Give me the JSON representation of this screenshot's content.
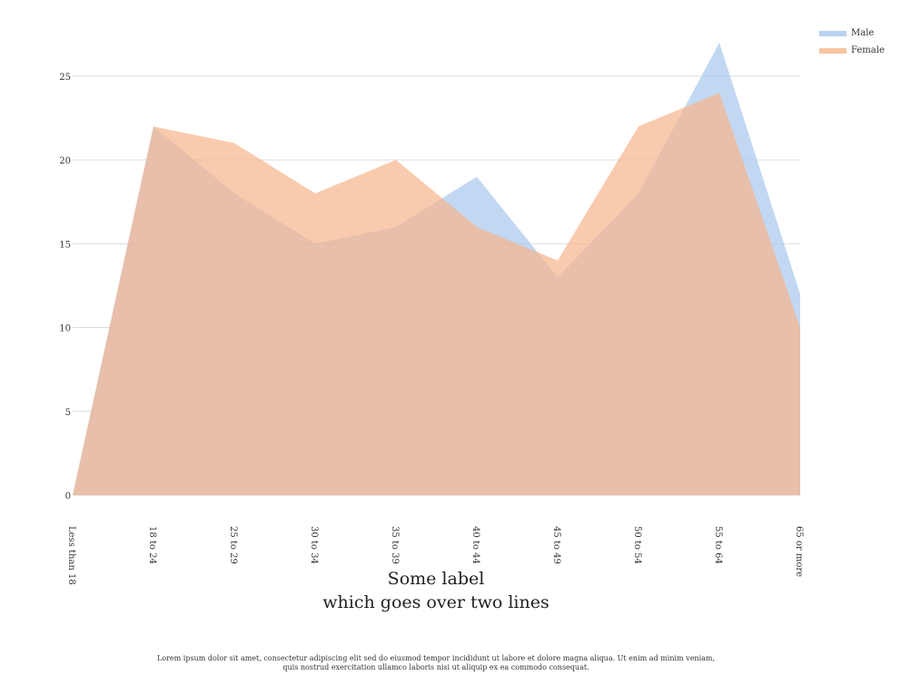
{
  "chart_data": {
    "type": "area",
    "categories": [
      "Less than 18",
      "18 to 24",
      "25 to 29",
      "30 to 34",
      "35 to 39",
      "40 to 44",
      "45 to 49",
      "50 to 54",
      "55 to 64",
      "65 or more"
    ],
    "series": [
      {
        "name": "Male",
        "values": [
          0,
          22,
          18,
          15,
          16,
          19,
          13,
          18,
          27,
          12
        ],
        "color": "#a8c8ec"
      },
      {
        "name": "Female",
        "values": [
          0,
          22,
          21,
          18,
          20,
          16,
          14,
          22,
          24,
          10
        ],
        "color": "#f6b58c"
      }
    ],
    "yticks": [
      0,
      5,
      10,
      15,
      20,
      25
    ],
    "ylim": [
      0,
      27
    ],
    "grid": true,
    "legend_position": "top-right",
    "xlabel_lines": [
      "Some label",
      "which goes over two lines"
    ],
    "caption_lines": [
      "Lorem ipsum dolor sit amet, consectetur adipiscing elit sed do eiusmod tempor incididunt ut labore et dolore magna aliqua. Ut enim ad minim veniam,",
      "quis nostrud exercitation ullamco laboris nisi ut aliquip ex ea commodo consequat."
    ]
  }
}
